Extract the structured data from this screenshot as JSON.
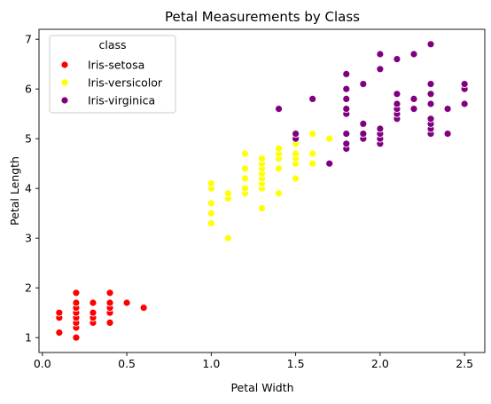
{
  "chart_data": {
    "type": "scatter",
    "title": "Petal Measurements by Class",
    "xlabel": "Petal Width",
    "ylabel": "Petal Length",
    "xlim": [
      -0.02,
      2.62
    ],
    "ylim": [
      0.7,
      7.2
    ],
    "xticks": [
      0.0,
      0.5,
      1.0,
      1.5,
      2.0,
      2.5
    ],
    "xtick_labels": [
      "0.0",
      "0.5",
      "1.0",
      "1.5",
      "2.0",
      "2.5"
    ],
    "yticks": [
      1,
      2,
      3,
      4,
      5,
      6,
      7
    ],
    "ytick_labels": [
      "1",
      "2",
      "3",
      "4",
      "5",
      "6",
      "7"
    ],
    "grid": false,
    "legend": {
      "title": "class",
      "position": "top-left"
    },
    "series": [
      {
        "name": "Iris-setosa",
        "color": "#ff0000",
        "points": [
          [
            0.1,
            1.1
          ],
          [
            0.1,
            1.4
          ],
          [
            0.1,
            1.5
          ],
          [
            0.2,
            1.0
          ],
          [
            0.2,
            1.2
          ],
          [
            0.2,
            1.3
          ],
          [
            0.2,
            1.4
          ],
          [
            0.2,
            1.5
          ],
          [
            0.2,
            1.6
          ],
          [
            0.2,
            1.7
          ],
          [
            0.2,
            1.9
          ],
          [
            0.3,
            1.3
          ],
          [
            0.3,
            1.4
          ],
          [
            0.3,
            1.5
          ],
          [
            0.3,
            1.7
          ],
          [
            0.4,
            1.3
          ],
          [
            0.4,
            1.5
          ],
          [
            0.4,
            1.6
          ],
          [
            0.4,
            1.7
          ],
          [
            0.4,
            1.9
          ],
          [
            0.5,
            1.7
          ],
          [
            0.6,
            1.6
          ]
        ]
      },
      {
        "name": "Iris-versicolor",
        "color": "#ffff00",
        "points": [
          [
            1.0,
            3.3
          ],
          [
            1.0,
            3.5
          ],
          [
            1.0,
            3.7
          ],
          [
            1.0,
            4.0
          ],
          [
            1.0,
            4.1
          ],
          [
            1.1,
            3.0
          ],
          [
            1.1,
            3.8
          ],
          [
            1.1,
            3.9
          ],
          [
            1.2,
            3.9
          ],
          [
            1.2,
            4.0
          ],
          [
            1.2,
            4.2
          ],
          [
            1.2,
            4.4
          ],
          [
            1.2,
            4.7
          ],
          [
            1.3,
            3.6
          ],
          [
            1.3,
            4.0
          ],
          [
            1.3,
            4.1
          ],
          [
            1.3,
            4.2
          ],
          [
            1.3,
            4.3
          ],
          [
            1.3,
            4.4
          ],
          [
            1.3,
            4.5
          ],
          [
            1.3,
            4.6
          ],
          [
            1.4,
            3.9
          ],
          [
            1.4,
            4.4
          ],
          [
            1.4,
            4.6
          ],
          [
            1.4,
            4.7
          ],
          [
            1.4,
            4.8
          ],
          [
            1.5,
            4.2
          ],
          [
            1.5,
            4.5
          ],
          [
            1.5,
            4.6
          ],
          [
            1.5,
            4.7
          ],
          [
            1.5,
            4.9
          ],
          [
            1.6,
            4.5
          ],
          [
            1.6,
            4.7
          ],
          [
            1.6,
            5.1
          ],
          [
            1.7,
            5.0
          ]
        ]
      },
      {
        "name": "Iris-virginica",
        "color": "#800080",
        "points": [
          [
            1.4,
            5.6
          ],
          [
            1.5,
            5.0
          ],
          [
            1.5,
            5.1
          ],
          [
            1.6,
            5.8
          ],
          [
            1.7,
            4.5
          ],
          [
            1.8,
            4.8
          ],
          [
            1.8,
            4.9
          ],
          [
            1.8,
            5.1
          ],
          [
            1.8,
            5.5
          ],
          [
            1.8,
            5.6
          ],
          [
            1.8,
            5.8
          ],
          [
            1.8,
            6.0
          ],
          [
            1.8,
            6.3
          ],
          [
            1.9,
            5.0
          ],
          [
            1.9,
            5.1
          ],
          [
            1.9,
            5.3
          ],
          [
            1.9,
            6.1
          ],
          [
            2.0,
            4.9
          ],
          [
            2.0,
            5.0
          ],
          [
            2.0,
            5.1
          ],
          [
            2.0,
            5.2
          ],
          [
            2.0,
            6.4
          ],
          [
            2.0,
            6.7
          ],
          [
            2.1,
            5.4
          ],
          [
            2.1,
            5.5
          ],
          [
            2.1,
            5.6
          ],
          [
            2.1,
            5.7
          ],
          [
            2.1,
            5.9
          ],
          [
            2.1,
            6.6
          ],
          [
            2.2,
            5.6
          ],
          [
            2.2,
            5.8
          ],
          [
            2.2,
            6.7
          ],
          [
            2.3,
            5.1
          ],
          [
            2.3,
            5.2
          ],
          [
            2.3,
            5.3
          ],
          [
            2.3,
            5.4
          ],
          [
            2.3,
            5.7
          ],
          [
            2.3,
            5.9
          ],
          [
            2.3,
            6.1
          ],
          [
            2.3,
            6.9
          ],
          [
            2.4,
            5.1
          ],
          [
            2.4,
            5.6
          ],
          [
            2.5,
            5.7
          ],
          [
            2.5,
            6.0
          ],
          [
            2.5,
            6.1
          ]
        ]
      }
    ]
  }
}
